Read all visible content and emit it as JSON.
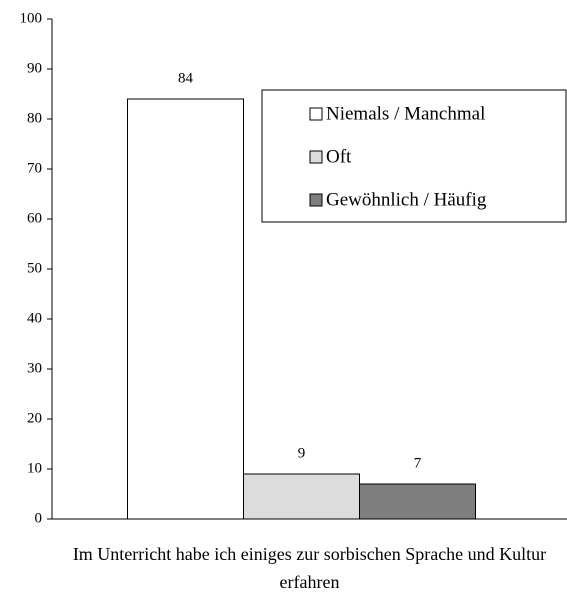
{
  "chart_data": {
    "type": "bar",
    "categories": [
      "Im Unterricht habe ich einiges zur sorbischen Sprache und Kultur erfahren"
    ],
    "series": [
      {
        "name": "Niemals / Manchmal",
        "color": "#ffffff",
        "values": [
          84
        ]
      },
      {
        "name": "Oft",
        "color": "#dcdcdc",
        "values": [
          9
        ]
      },
      {
        "name": "Gewöhnlich / Häufig",
        "color": "#7f7f7f",
        "values": [
          7
        ]
      }
    ],
    "ylim": [
      0,
      100
    ],
    "yticks": [
      0,
      10,
      20,
      30,
      40,
      50,
      60,
      70,
      80,
      90,
      100
    ],
    "legend": "upper right",
    "grid": false
  }
}
